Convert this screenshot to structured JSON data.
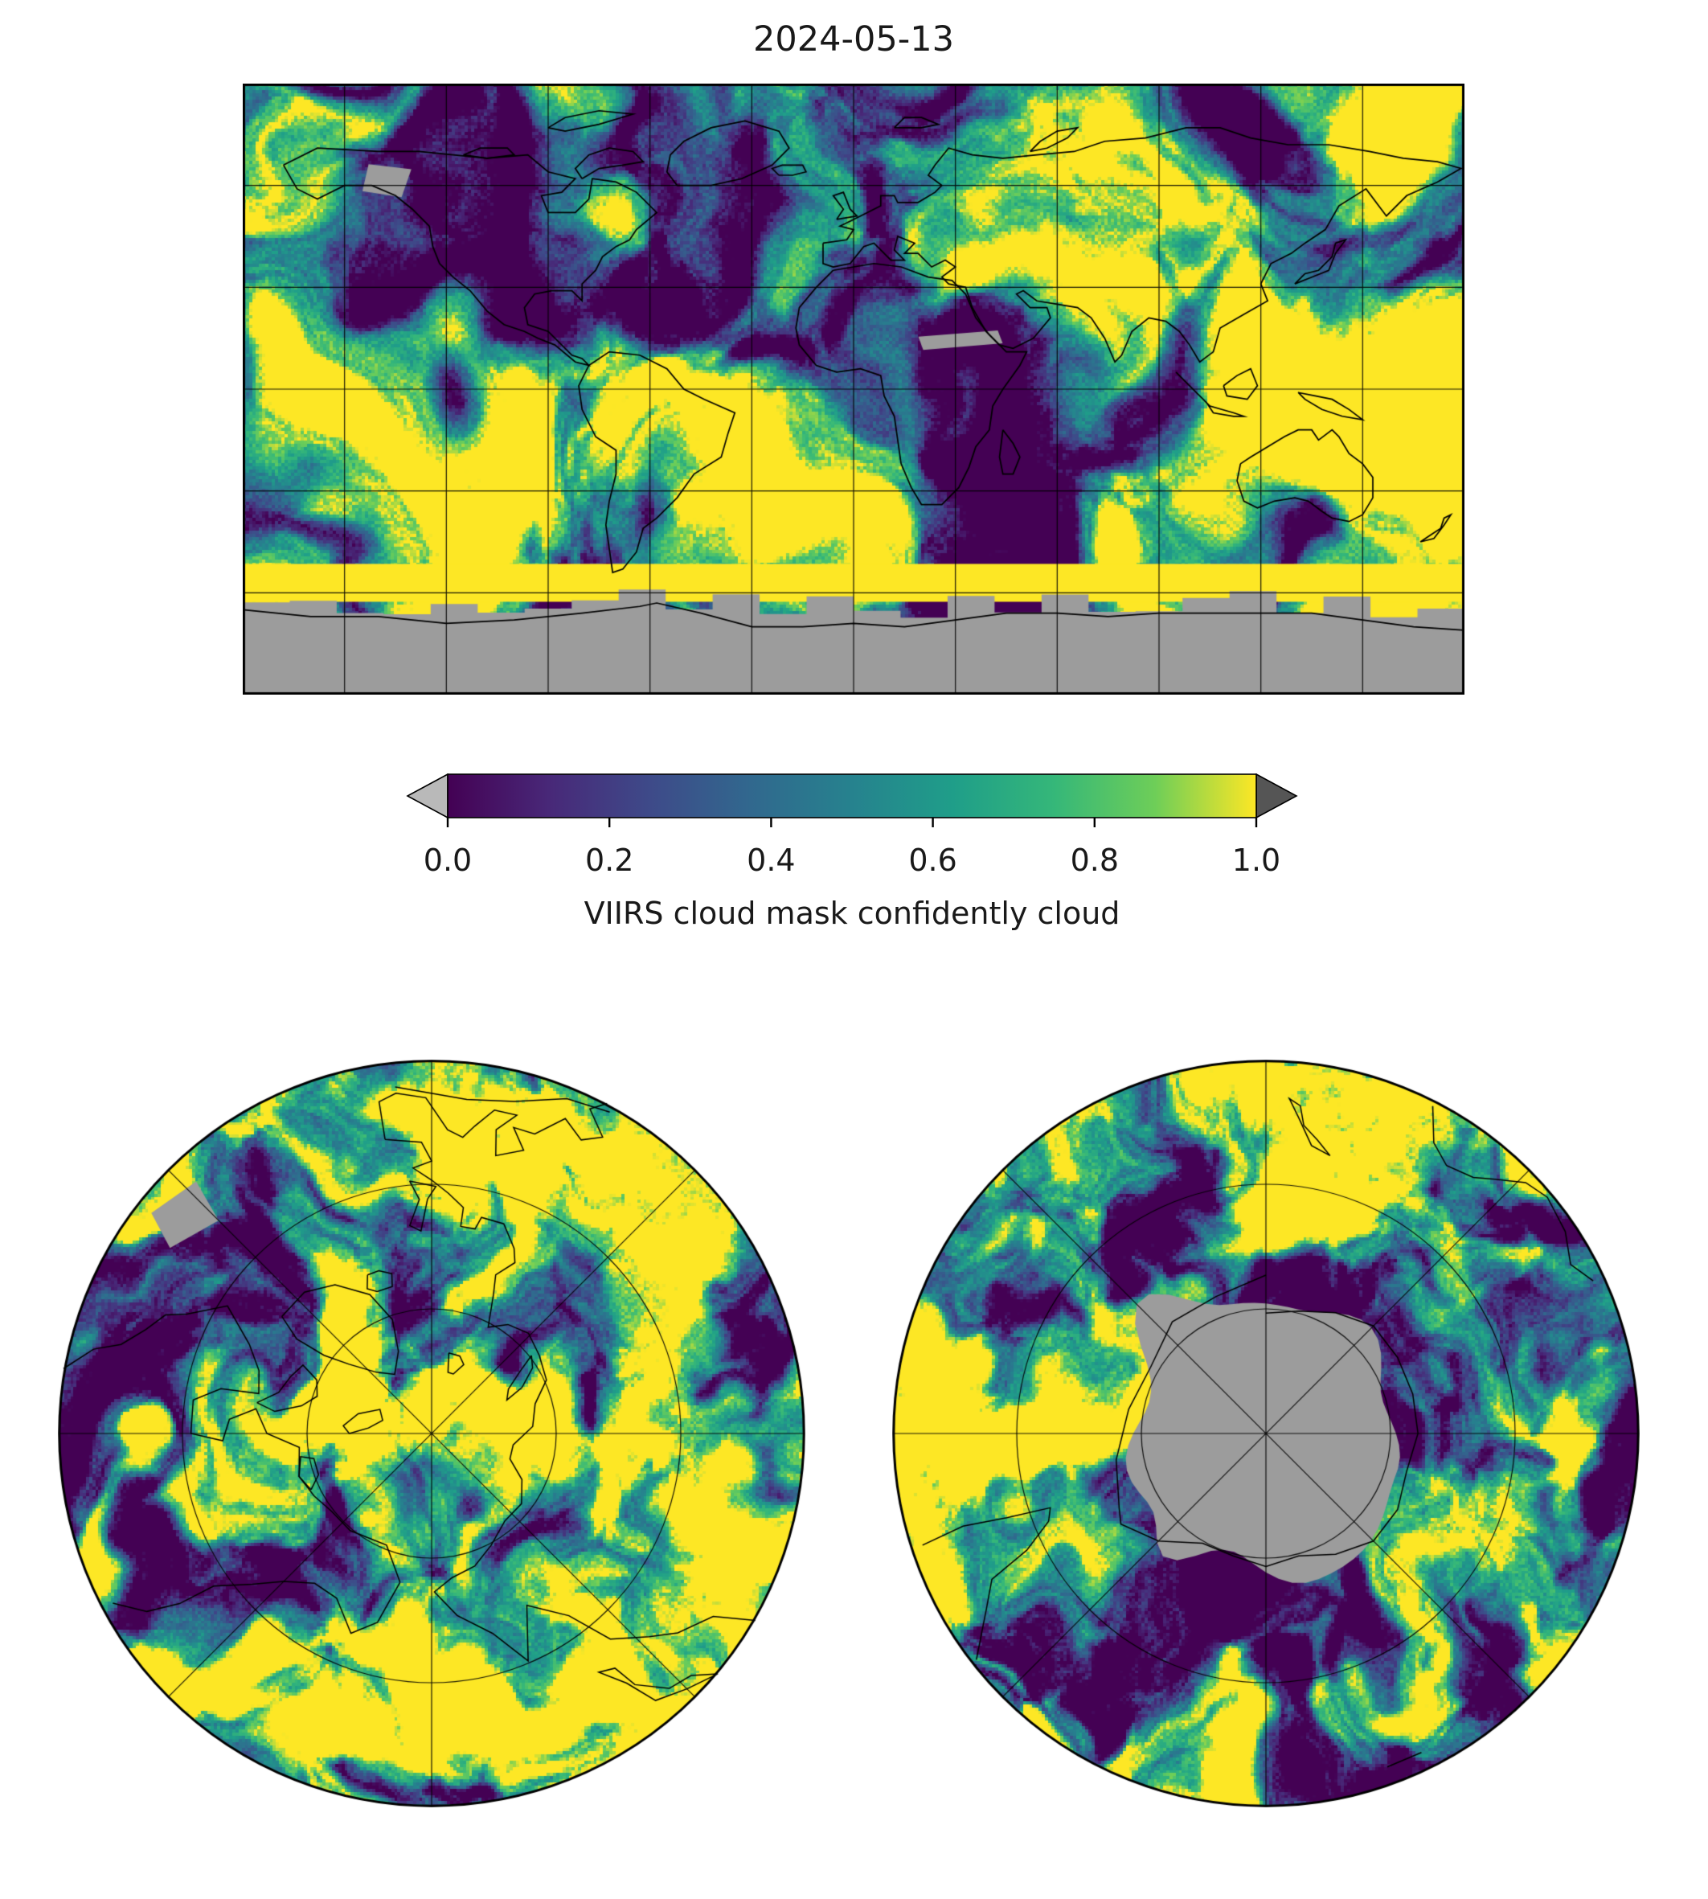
{
  "figure": {
    "title": "2024-05-13"
  },
  "colorbar": {
    "label": "VIIRS cloud mask confidently cloud",
    "ticks": [
      "0.0",
      "0.2",
      "0.4",
      "0.6",
      "0.8",
      "1.0"
    ],
    "under_color": "#b9b9b9",
    "over_color": "#555555",
    "stops": [
      [
        0,
        "#440154"
      ],
      [
        0.125,
        "#482878"
      ],
      [
        0.25,
        "#3e4a89"
      ],
      [
        0.375,
        "#31688e"
      ],
      [
        0.5,
        "#26828e"
      ],
      [
        0.625,
        "#1f9e89"
      ],
      [
        0.75,
        "#35b779"
      ],
      [
        0.875,
        "#6ece58"
      ],
      [
        1,
        "#fde725"
      ]
    ]
  },
  "colors": {
    "nodata": "#9c9c9c",
    "background": "#ffffff",
    "line": "#000000",
    "over_band": "#fde725"
  },
  "chart_data": {
    "type": "heatmap",
    "title": "2024-05-13",
    "value_label": "VIIRS cloud mask confidently cloud",
    "value_range": [
      0,
      1
    ],
    "colormap": "viridis",
    "colorbar_ticks": [
      0,
      0.2,
      0.4,
      0.6,
      0.8,
      1
    ],
    "colorbar_extends": {
      "under": "light gray triangle",
      "over": "dark gray triangle"
    },
    "value_semantics": {
      "1.0": "confidently cloudy (yellow)",
      "0.0": "not confidently cloudy (dark purple)",
      "no_data": "gray (Antarctic polar-night region and missing orbit swaths)"
    },
    "panels": [
      {
        "name": "global",
        "projection": "equirectangular (PlateCarree)",
        "lon_range": [
          -180,
          180
        ],
        "lat_range": [
          -90,
          90
        ],
        "graticule_spacing_deg": 30,
        "no_data": "Antarctic region south of about 62S shown gray with jagged swath-edge steps"
      },
      {
        "name": "north-polar",
        "projection": "north polar stereographic",
        "lat_limit": 30,
        "graticule": "latitude circles every 20 deg, meridians every 45 deg",
        "no_data": "one small gray swath patch upper-left"
      },
      {
        "name": "south-polar",
        "projection": "south polar stereographic",
        "lat_limit": -30,
        "graticule": "latitude circles every 20 deg, meridians every 45 deg",
        "no_data": "Antarctica interior gray blob with wedge extensions"
      }
    ],
    "grid": true,
    "legend_position": "horizontal colorbar centered below global map"
  },
  "coastlines": {
    "north_america": [
      [
        -168,
        66
      ],
      [
        -158,
        71
      ],
      [
        -140,
        70
      ],
      [
        -128,
        70
      ],
      [
        -118,
        69
      ],
      [
        -108,
        68
      ],
      [
        -96,
        69
      ],
      [
        -90,
        64
      ],
      [
        -82,
        62
      ],
      [
        -86,
        58
      ],
      [
        -92,
        57
      ],
      [
        -90,
        52
      ],
      [
        -82,
        52
      ],
      [
        -78,
        56
      ],
      [
        -77,
        62
      ],
      [
        -70,
        61
      ],
      [
        -64,
        58
      ],
      [
        -58,
        52
      ],
      [
        -64,
        47
      ],
      [
        -66,
        44
      ],
      [
        -70,
        42
      ],
      [
        -74,
        39
      ],
      [
        -76,
        35
      ],
      [
        -80,
        31
      ],
      [
        -80,
        26
      ],
      [
        -83,
        29
      ],
      [
        -89,
        29
      ],
      [
        -94,
        28
      ],
      [
        -97,
        24
      ],
      [
        -96,
        19
      ],
      [
        -90,
        17
      ],
      [
        -87,
        14
      ],
      [
        -83,
        10
      ],
      [
        -80,
        9
      ],
      [
        -78,
        7
      ],
      [
        -82,
        8
      ],
      [
        -88,
        13
      ],
      [
        -93,
        15
      ],
      [
        -97,
        17
      ],
      [
        -103,
        19
      ],
      [
        -108,
        23
      ],
      [
        -113,
        29
      ],
      [
        -118,
        33
      ],
      [
        -122,
        37
      ],
      [
        -124,
        42
      ],
      [
        -125,
        48
      ],
      [
        -130,
        53
      ],
      [
        -135,
        57
      ],
      [
        -142,
        60
      ],
      [
        -150,
        60
      ],
      [
        -158,
        56
      ],
      [
        -164,
        59
      ],
      [
        -168,
        66
      ]
    ],
    "greenland": [
      [
        -52,
        60
      ],
      [
        -55,
        64
      ],
      [
        -54,
        69
      ],
      [
        -50,
        73
      ],
      [
        -42,
        77
      ],
      [
        -32,
        79
      ],
      [
        -22,
        76
      ],
      [
        -19,
        71
      ],
      [
        -24,
        66
      ],
      [
        -33,
        62
      ],
      [
        -42,
        60
      ],
      [
        -52,
        60
      ]
    ],
    "ellesmere": [
      [
        -90,
        77
      ],
      [
        -85,
        80
      ],
      [
        -75,
        82
      ],
      [
        -65,
        81
      ],
      [
        -75,
        78
      ],
      [
        -85,
        76
      ],
      [
        -90,
        77
      ]
    ],
    "baffin": [
      [
        -80,
        62
      ],
      [
        -75,
        65
      ],
      [
        -68,
        66
      ],
      [
        -62,
        67
      ],
      [
        -65,
        70
      ],
      [
        -72,
        71
      ],
      [
        -78,
        69
      ],
      [
        -82,
        65
      ],
      [
        -80,
        62
      ]
    ],
    "victoria": [
      [
        -115,
        69
      ],
      [
        -110,
        71
      ],
      [
        -102,
        71
      ],
      [
        -100,
        69
      ],
      [
        -108,
        68
      ],
      [
        -115,
        69
      ]
    ],
    "iceland": [
      [
        -22,
        63
      ],
      [
        -24,
        65
      ],
      [
        -21,
        66
      ],
      [
        -15,
        66
      ],
      [
        -14,
        64
      ],
      [
        -18,
        63
      ],
      [
        -22,
        63
      ]
    ],
    "svalbard": [
      [
        12,
        77
      ],
      [
        15,
        80
      ],
      [
        20,
        80
      ],
      [
        25,
        78
      ],
      [
        20,
        77
      ],
      [
        12,
        77
      ]
    ],
    "novaya_zemlya": [
      [
        52,
        70
      ],
      [
        55,
        73
      ],
      [
        60,
        76
      ],
      [
        66,
        77
      ],
      [
        63,
        74
      ],
      [
        57,
        71
      ],
      [
        52,
        70
      ]
    ],
    "south_america": [
      [
        -78,
        7
      ],
      [
        -72,
        11
      ],
      [
        -63,
        10
      ],
      [
        -55,
        6
      ],
      [
        -50,
        0
      ],
      [
        -44,
        -3
      ],
      [
        -35,
        -7
      ],
      [
        -37,
        -13
      ],
      [
        -39,
        -20
      ],
      [
        -47,
        -25
      ],
      [
        -52,
        -32
      ],
      [
        -58,
        -38
      ],
      [
        -62,
        -41
      ],
      [
        -64,
        -48
      ],
      [
        -68,
        -53
      ],
      [
        -71,
        -54
      ],
      [
        -72,
        -47
      ],
      [
        -73,
        -40
      ],
      [
        -72,
        -33
      ],
      [
        -70,
        -25
      ],
      [
        -70,
        -18
      ],
      [
        -76,
        -14
      ],
      [
        -80,
        -6
      ],
      [
        -81,
        1
      ],
      [
        -78,
        7
      ]
    ],
    "africa": [
      [
        -6,
        35
      ],
      [
        -11,
        30
      ],
      [
        -16,
        24
      ],
      [
        -17,
        18
      ],
      [
        -16,
        13
      ],
      [
        -11,
        7
      ],
      [
        -5,
        5
      ],
      [
        2,
        6
      ],
      [
        8,
        4
      ],
      [
        9,
        -2
      ],
      [
        12,
        -8
      ],
      [
        13,
        -15
      ],
      [
        14,
        -22
      ],
      [
        17,
        -29
      ],
      [
        20,
        -34
      ],
      [
        26,
        -34
      ],
      [
        31,
        -29
      ],
      [
        34,
        -23
      ],
      [
        36,
        -17
      ],
      [
        40,
        -12
      ],
      [
        41,
        -5
      ],
      [
        44,
        0
      ],
      [
        49,
        7
      ],
      [
        51,
        11
      ],
      [
        45,
        11
      ],
      [
        40,
        16
      ],
      [
        36,
        21
      ],
      [
        33,
        28
      ],
      [
        29,
        32
      ],
      [
        22,
        33
      ],
      [
        14,
        36
      ],
      [
        6,
        37
      ],
      [
        -6,
        35
      ]
    ],
    "madagascar": [
      [
        44,
        -12
      ],
      [
        47,
        -16
      ],
      [
        49,
        -20
      ],
      [
        47,
        -25
      ],
      [
        44,
        -25
      ],
      [
        43,
        -20
      ],
      [
        44,
        -12
      ]
    ],
    "eurasia": [
      [
        -9,
        43
      ],
      [
        -2,
        44
      ],
      [
        0,
        47
      ],
      [
        -4,
        48
      ],
      [
        0,
        50
      ],
      [
        4,
        52
      ],
      [
        8,
        54
      ],
      [
        8,
        57
      ],
      [
        12,
        57
      ],
      [
        13,
        55
      ],
      [
        19,
        55
      ],
      [
        24,
        58
      ],
      [
        26,
        60
      ],
      [
        22,
        63
      ],
      [
        24,
        66
      ],
      [
        28,
        71
      ],
      [
        35,
        69
      ],
      [
        44,
        68
      ],
      [
        54,
        69
      ],
      [
        65,
        70
      ],
      [
        74,
        73
      ],
      [
        86,
        74
      ],
      [
        98,
        77
      ],
      [
        108,
        77
      ],
      [
        117,
        74
      ],
      [
        128,
        72
      ],
      [
        140,
        72
      ],
      [
        152,
        70
      ],
      [
        162,
        68
      ],
      [
        172,
        67
      ],
      [
        179,
        65
      ],
      [
        172,
        61
      ],
      [
        163,
        57
      ],
      [
        157,
        51
      ],
      [
        151,
        59
      ],
      [
        143,
        54
      ],
      [
        139,
        47
      ],
      [
        133,
        43
      ],
      [
        129,
        40
      ],
      [
        123,
        37
      ],
      [
        120,
        31
      ],
      [
        122,
        26
      ],
      [
        115,
        22
      ],
      [
        108,
        18
      ],
      [
        106,
        11
      ],
      [
        102,
        8
      ],
      [
        99,
        13
      ],
      [
        96,
        17
      ],
      [
        92,
        20
      ],
      [
        87,
        21
      ],
      [
        82,
        17
      ],
      [
        79,
        10
      ],
      [
        77,
        8
      ],
      [
        74,
        15
      ],
      [
        70,
        21
      ],
      [
        66,
        24
      ],
      [
        60,
        25
      ],
      [
        54,
        26
      ],
      [
        50,
        29
      ],
      [
        48,
        28
      ],
      [
        52,
        24
      ],
      [
        57,
        24
      ],
      [
        58,
        21
      ],
      [
        53,
        15
      ],
      [
        47,
        12
      ],
      [
        43,
        13
      ],
      [
        39,
        17
      ],
      [
        35,
        24
      ],
      [
        33,
        30
      ],
      [
        28,
        31
      ],
      [
        26,
        33
      ],
      [
        30,
        36
      ],
      [
        27,
        38
      ],
      [
        23,
        36
      ],
      [
        19,
        40
      ],
      [
        15,
        40
      ],
      [
        18,
        43
      ],
      [
        13,
        45
      ],
      [
        12,
        41
      ],
      [
        15,
        38
      ],
      [
        11,
        38
      ],
      [
        8,
        41
      ],
      [
        6,
        43
      ],
      [
        3,
        42
      ],
      [
        -1,
        37
      ],
      [
        -6,
        36
      ],
      [
        -9,
        37
      ],
      [
        -9,
        43
      ]
    ],
    "british_isles": [
      [
        -5,
        50
      ],
      [
        -3,
        53
      ],
      [
        -6,
        57
      ],
      [
        -3,
        58
      ],
      [
        -1,
        53
      ],
      [
        1,
        51
      ],
      [
        -5,
        50
      ]
    ],
    "japan": [
      [
        130,
        31
      ],
      [
        133,
        34
      ],
      [
        137,
        35
      ],
      [
        141,
        39
      ],
      [
        142,
        43
      ],
      [
        145,
        44
      ],
      [
        142,
        40
      ],
      [
        140,
        35
      ],
      [
        135,
        33
      ],
      [
        130,
        31
      ]
    ],
    "borneo": [
      [
        109,
        1
      ],
      [
        113,
        4
      ],
      [
        117,
        6
      ],
      [
        119,
        1
      ],
      [
        116,
        -3
      ],
      [
        110,
        -2
      ],
      [
        109,
        1
      ]
    ],
    "sumatra_java": [
      [
        95,
        5
      ],
      [
        100,
        0
      ],
      [
        104,
        -4
      ],
      [
        106,
        -7
      ],
      [
        112,
        -8
      ],
      [
        115,
        -8
      ],
      [
        112,
        -7
      ],
      [
        105,
        -5
      ],
      [
        99,
        1
      ],
      [
        95,
        5
      ]
    ],
    "new_guinea": [
      [
        131,
        -1
      ],
      [
        136,
        -2
      ],
      [
        141,
        -3
      ],
      [
        146,
        -6
      ],
      [
        150,
        -9
      ],
      [
        144,
        -8
      ],
      [
        138,
        -6
      ],
      [
        133,
        -3
      ],
      [
        131,
        -1
      ]
    ],
    "australia": [
      [
        114,
        -22
      ],
      [
        113,
        -27
      ],
      [
        115,
        -33
      ],
      [
        119,
        -35
      ],
      [
        124,
        -33
      ],
      [
        130,
        -32
      ],
      [
        134,
        -33
      ],
      [
        138,
        -36
      ],
      [
        141,
        -38
      ],
      [
        146,
        -39
      ],
      [
        150,
        -37
      ],
      [
        153,
        -32
      ],
      [
        153,
        -26
      ],
      [
        150,
        -22
      ],
      [
        146,
        -19
      ],
      [
        143,
        -14
      ],
      [
        141,
        -12
      ],
      [
        137,
        -15
      ],
      [
        135,
        -12
      ],
      [
        131,
        -12
      ],
      [
        127,
        -14
      ],
      [
        122,
        -17
      ],
      [
        117,
        -20
      ],
      [
        114,
        -22
      ]
    ],
    "new_zealand": [
      [
        167,
        -45
      ],
      [
        170,
        -43
      ],
      [
        173,
        -41
      ],
      [
        174,
        -38
      ],
      [
        176,
        -37
      ],
      [
        174,
        -40
      ],
      [
        171,
        -44
      ],
      [
        167,
        -45
      ]
    ],
    "antarctica": [
      [
        -180,
        -65
      ],
      [
        -160,
        -67
      ],
      [
        -140,
        -67
      ],
      [
        -120,
        -69
      ],
      [
        -100,
        -68
      ],
      [
        -80,
        -66
      ],
      [
        -63,
        -64
      ],
      [
        -58,
        -63
      ],
      [
        -45,
        -66
      ],
      [
        -30,
        -70
      ],
      [
        -15,
        -70
      ],
      [
        0,
        -69
      ],
      [
        15,
        -70
      ],
      [
        30,
        -68
      ],
      [
        45,
        -66
      ],
      [
        60,
        -66
      ],
      [
        75,
        -67
      ],
      [
        90,
        -66
      ],
      [
        105,
        -66
      ],
      [
        120,
        -66
      ],
      [
        135,
        -66
      ],
      [
        150,
        -68
      ],
      [
        165,
        -70
      ],
      [
        180,
        -71
      ]
    ]
  }
}
